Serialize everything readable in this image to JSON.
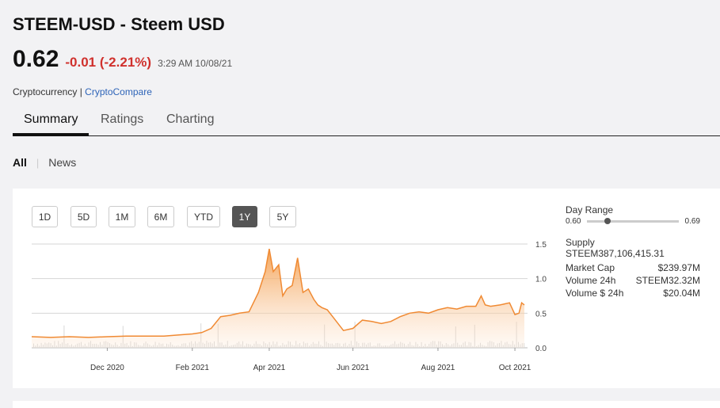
{
  "header": {
    "title": "STEEM-USD - Steem USD",
    "price": "0.62",
    "change": "-0.01 (-2.21%)",
    "timestamp": "3:29 AM 10/08/21",
    "category": "Cryptocurrency",
    "separator": "|",
    "source": "CryptoCompare"
  },
  "tabs": [
    {
      "label": "Summary",
      "active": true
    },
    {
      "label": "Ratings",
      "active": false
    },
    {
      "label": "Charting",
      "active": false
    }
  ],
  "filters": {
    "active": "All",
    "separator": "|",
    "other": "News"
  },
  "range_buttons": [
    {
      "label": "1D",
      "active": false
    },
    {
      "label": "5D",
      "active": false
    },
    {
      "label": "1M",
      "active": false
    },
    {
      "label": "6M",
      "active": false
    },
    {
      "label": "YTD",
      "active": false
    },
    {
      "label": "1Y",
      "active": true
    },
    {
      "label": "5Y",
      "active": false
    }
  ],
  "stats": {
    "day_range_label": "Day Range",
    "day_range_low": "0.60",
    "day_range_high": "0.69",
    "day_range_current": 0.62,
    "supply_label": "Supply",
    "supply_value": "STEEM387,106,415.31",
    "market_cap_label": "Market Cap",
    "market_cap_value": "$239.97M",
    "volume_24h_label": "Volume 24h",
    "volume_24h_value": "STEEM32.32M",
    "volume_usd_label": "Volume $ 24h",
    "volume_usd_value": "$20.04M"
  },
  "colors": {
    "accent": "#f39c4a",
    "negative": "#d0312d",
    "link": "#2e64b8"
  },
  "chart_data": {
    "type": "area",
    "x": [
      "2020-10-08",
      "2020-10-22",
      "2020-11-05",
      "2020-11-19",
      "2020-12-03",
      "2020-12-17",
      "2020-12-31",
      "2021-01-14",
      "2021-01-28",
      "2021-02-04",
      "2021-02-11",
      "2021-02-18",
      "2021-02-25",
      "2021-03-04",
      "2021-03-11",
      "2021-03-18",
      "2021-03-25",
      "2021-03-30",
      "2021-04-02",
      "2021-04-05",
      "2021-04-09",
      "2021-04-12",
      "2021-04-15",
      "2021-04-19",
      "2021-04-23",
      "2021-04-27",
      "2021-05-01",
      "2021-05-05",
      "2021-05-08",
      "2021-05-11",
      "2021-05-15",
      "2021-05-19",
      "2021-05-23",
      "2021-05-27",
      "2021-06-03",
      "2021-06-10",
      "2021-06-17",
      "2021-06-24",
      "2021-07-01",
      "2021-07-08",
      "2021-07-15",
      "2021-07-22",
      "2021-07-29",
      "2021-08-05",
      "2021-08-12",
      "2021-08-19",
      "2021-08-26",
      "2021-09-02",
      "2021-09-06",
      "2021-09-09",
      "2021-09-13",
      "2021-09-20",
      "2021-09-27",
      "2021-10-01",
      "2021-10-04",
      "2021-10-06",
      "2021-10-08"
    ],
    "values": [
      0.16,
      0.15,
      0.16,
      0.15,
      0.16,
      0.17,
      0.17,
      0.17,
      0.19,
      0.2,
      0.22,
      0.28,
      0.45,
      0.47,
      0.5,
      0.52,
      0.8,
      1.1,
      1.43,
      1.1,
      1.2,
      0.75,
      0.85,
      0.9,
      1.3,
      0.8,
      0.85,
      0.7,
      0.62,
      0.58,
      0.55,
      0.45,
      0.35,
      0.25,
      0.28,
      0.4,
      0.38,
      0.35,
      0.38,
      0.45,
      0.5,
      0.52,
      0.5,
      0.55,
      0.58,
      0.56,
      0.6,
      0.6,
      0.75,
      0.62,
      0.6,
      0.62,
      0.65,
      0.48,
      0.5,
      0.65,
      0.62
    ],
    "x_tick_labels": [
      "Dec 2020",
      "Feb 2021",
      "Apr 2021",
      "Jun 2021",
      "Aug 2021",
      "Oct 2021"
    ],
    "x_tick_dates": [
      "2020-12-03",
      "2021-02-04",
      "2021-04-02",
      "2021-06-03",
      "2021-08-05",
      "2021-10-01"
    ],
    "y_tick_labels": [
      "1.5",
      "1.0",
      "0.5",
      "0.0"
    ],
    "y_ticks": [
      1.5,
      1.0,
      0.5,
      0.0
    ],
    "ylim": [
      0,
      1.5
    ],
    "y_axis_side": "right",
    "grid": "horizontal",
    "volume_bars": true,
    "title": "",
    "xlabel": "",
    "ylabel": ""
  }
}
